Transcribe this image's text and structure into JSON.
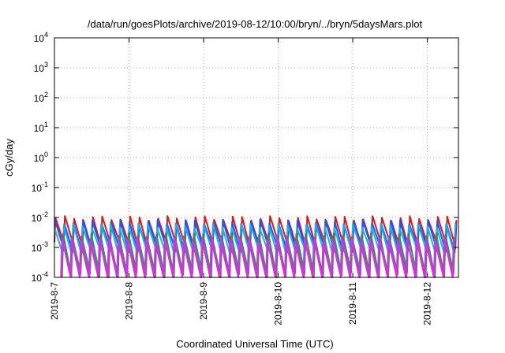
{
  "chart_data": {
    "type": "line",
    "title": "/data/run/goesPlots/archive/2019-08-12/10:00/bryn/../bryn/5daysMars.plot",
    "xlabel": "Coordinated Universal Time (UTC)",
    "ylabel": "cGy/day",
    "yscale": "log",
    "ylim": [
      0.0001,
      10000
    ],
    "xlim": [
      "2019-08-07 00:00",
      "2019-08-12 10:00"
    ],
    "grid": true,
    "x_tick_labels": [
      "2019-8-7",
      "2019-8-8",
      "2019-8-9",
      "2019-8-10",
      "2019-8-11",
      "2019-8-12"
    ],
    "y_ticks": [
      {
        "base": "10",
        "exp": "-4"
      },
      {
        "base": "10",
        "exp": "-3"
      },
      {
        "base": "10",
        "exp": "-2"
      },
      {
        "base": "10",
        "exp": "-1"
      },
      {
        "base": "10",
        "exp": "0"
      },
      {
        "base": "10",
        "exp": "1"
      },
      {
        "base": "10",
        "exp": "2"
      },
      {
        "base": "10",
        "exp": "3"
      },
      {
        "base": "10",
        "exp": "4"
      }
    ],
    "cycle_hours": 3,
    "series": [
      {
        "color": "#ee1111",
        "peak": 0.0095,
        "trough": 0.0012
      },
      {
        "color": "#1a55ff",
        "peak": 0.0072,
        "trough": 0.0009
      },
      {
        "color": "#18b3ee",
        "peak": 0.0055,
        "trough": 0.0007
      },
      {
        "color": "#1e9a55",
        "peak": 0.0025,
        "trough": 0.00012
      },
      {
        "color": "#6e6e9e",
        "peak": 0.002,
        "trough": 0.0001
      },
      {
        "color": "#ee22ee",
        "peak": 0.0018,
        "trough": 9e-05
      }
    ]
  }
}
